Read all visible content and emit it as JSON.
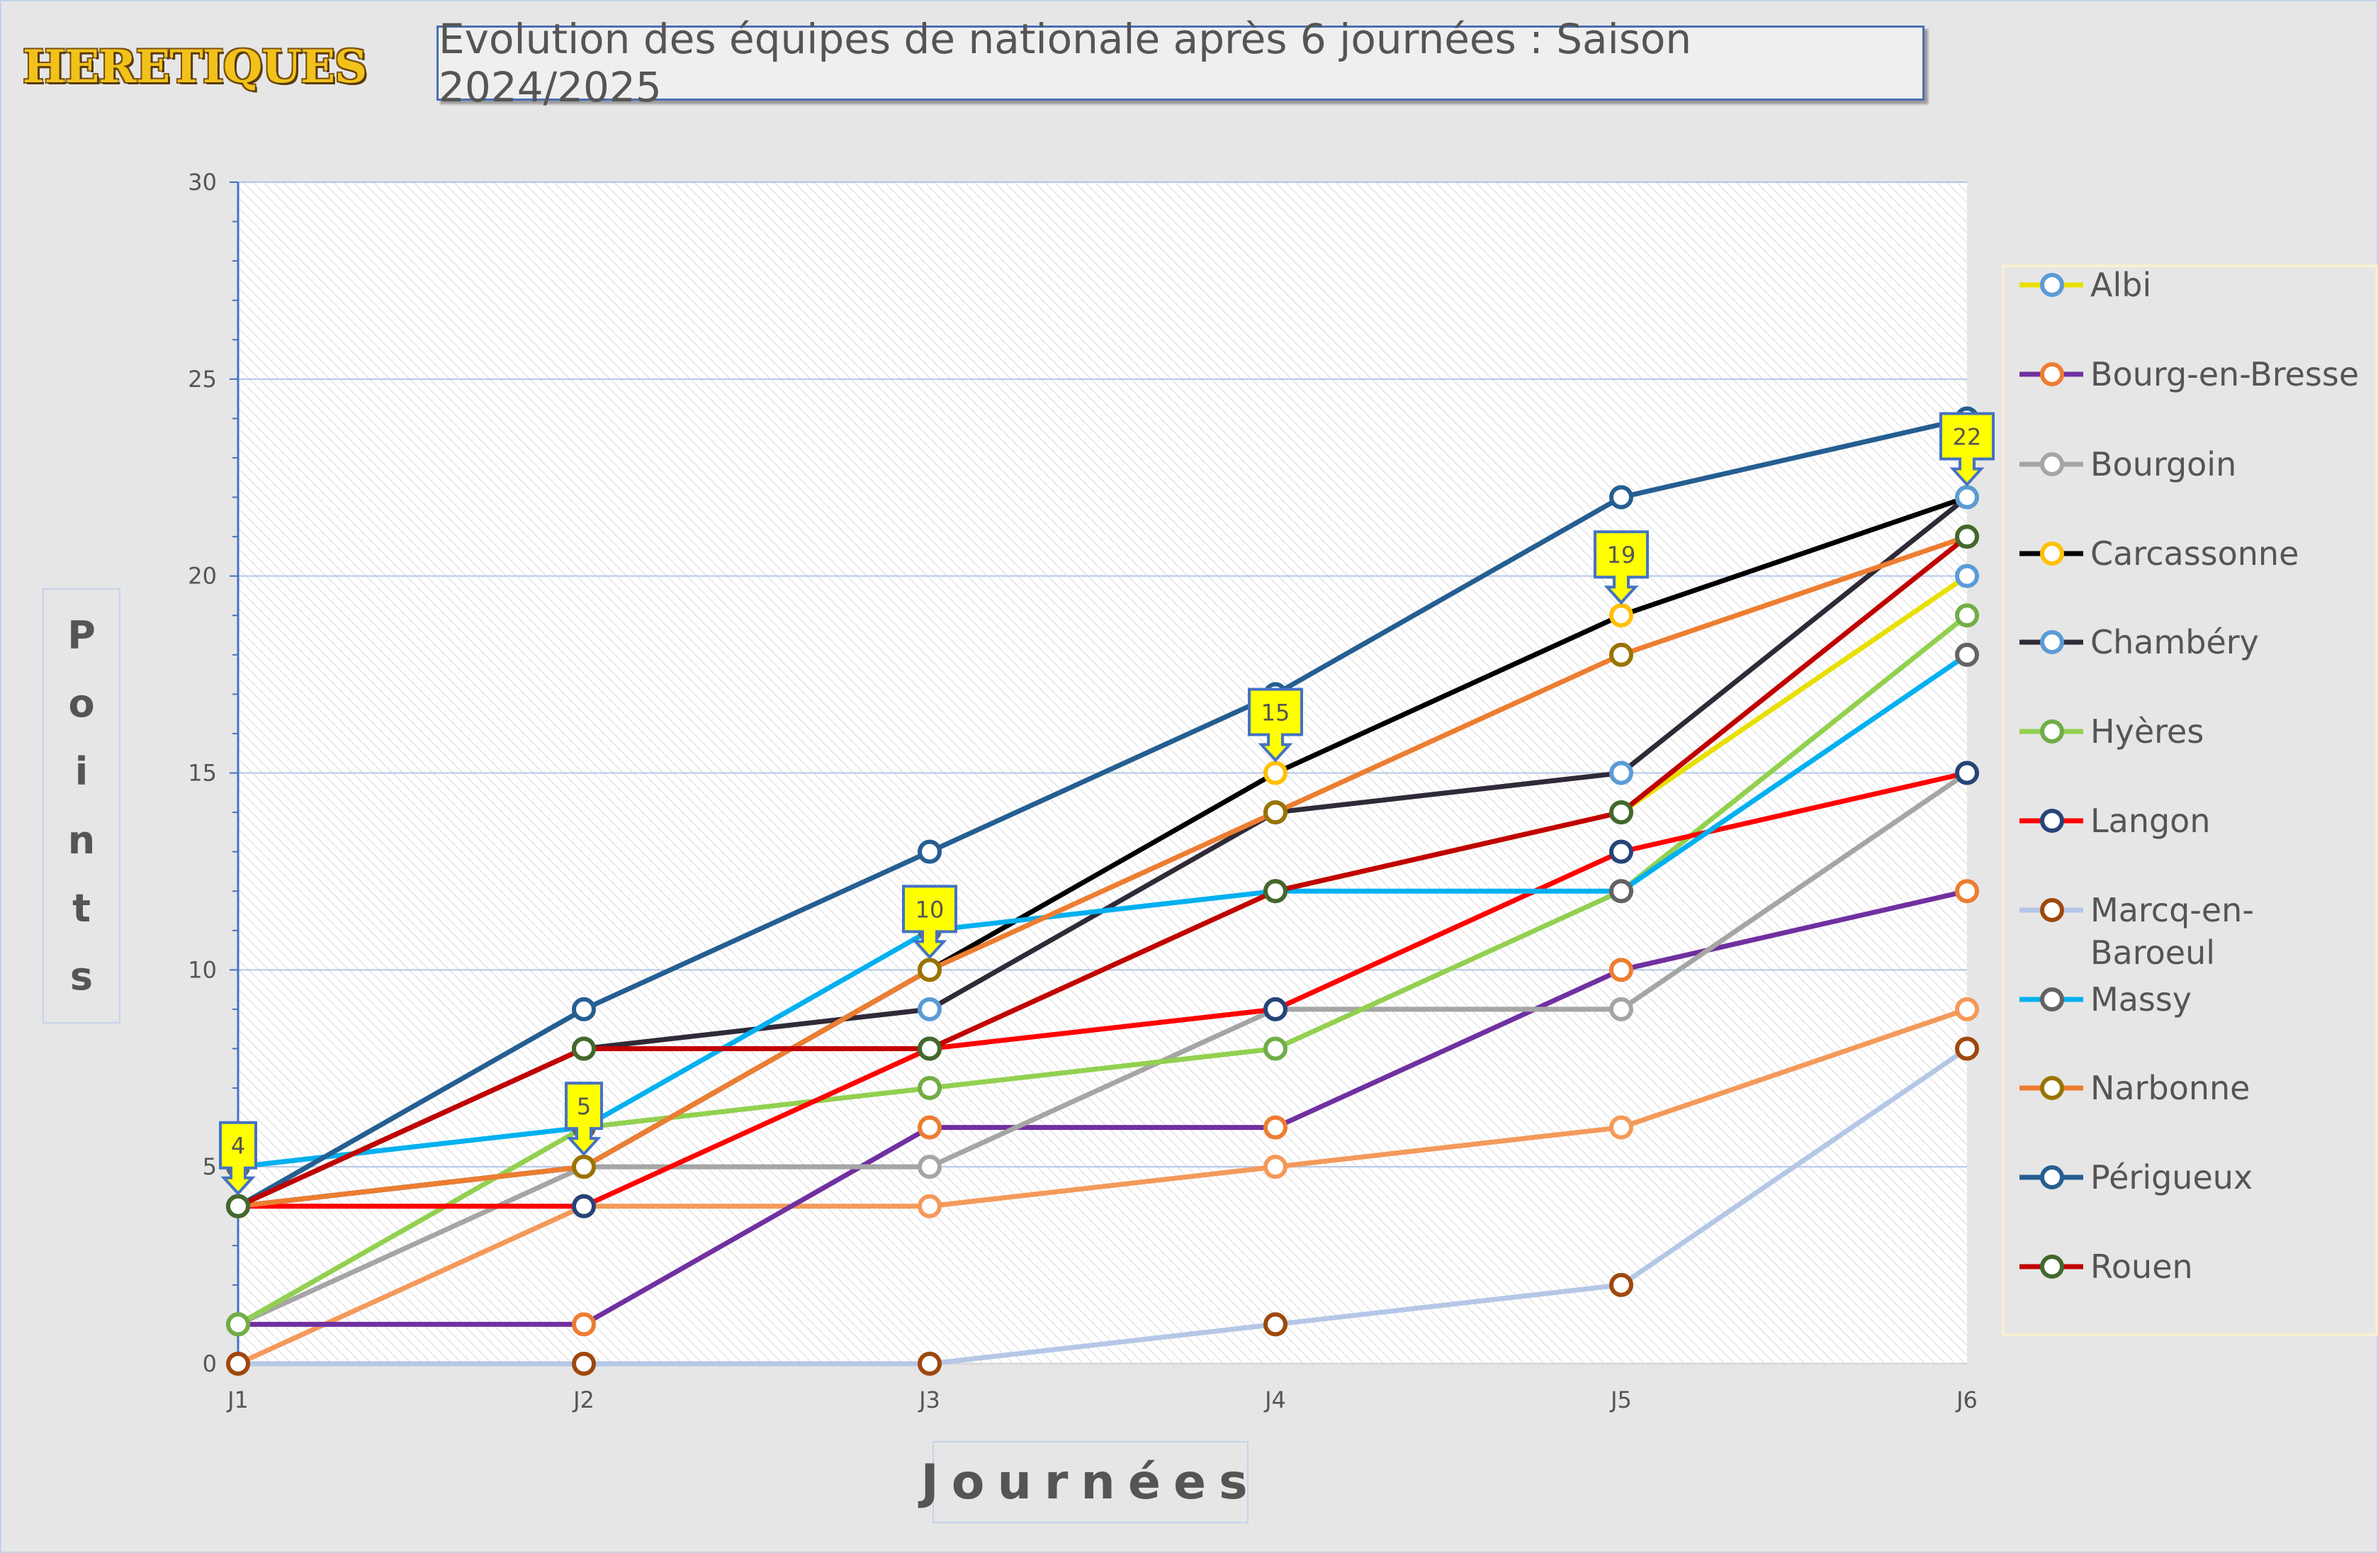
{
  "logo_text": "HERETIQUES",
  "chart_data": {
    "type": "line",
    "title": "Evolution des équipes de nationale après 6 journées : Saison 2024/2025",
    "xlabel": "Journées",
    "ylabel": "Points",
    "categories": [
      "J1",
      "J2",
      "J3",
      "J4",
      "J5",
      "J6"
    ],
    "ylim": [
      0,
      30
    ],
    "yticks": [
      0,
      5,
      10,
      15,
      20,
      25,
      30
    ],
    "grid": true,
    "legend_position": "right",
    "series": [
      {
        "name": "Albi",
        "line": "#e8e000",
        "marker": "#5b9bd5",
        "values": [
          4,
          8,
          8,
          12,
          14,
          20
        ]
      },
      {
        "name": "Bourg-en-Bresse",
        "line": "#7030a0",
        "marker": "#ed7d31",
        "values": [
          1,
          1,
          6,
          6,
          10,
          12
        ]
      },
      {
        "name": "Bourgoin",
        "line": "#a5a5a5",
        "marker": "#a5a5a5",
        "values": [
          1,
          5,
          5,
          9,
          9,
          15
        ]
      },
      {
        "name": "Carcassonne",
        "line": "#000000",
        "marker": "#ffc000",
        "values": [
          4,
          5,
          10,
          15,
          19,
          22
        ]
      },
      {
        "name": "Chambéry",
        "line": "#302a38",
        "marker": "#5b9bd5",
        "values": [
          4,
          8,
          9,
          14,
          15,
          22
        ]
      },
      {
        "name": "Hyères",
        "line": "#92d050",
        "marker": "#70ad47",
        "values": [
          1,
          6,
          7,
          8,
          12,
          19
        ]
      },
      {
        "name": "Langon",
        "line": "#ff0000",
        "marker": "#264478",
        "values": [
          4,
          4,
          8,
          9,
          13,
          15
        ]
      },
      {
        "name": "Marcq-en-Baroeul",
        "line": "#b4c7e7",
        "marker": "#9e480e",
        "values": [
          0,
          0,
          0,
          1,
          2,
          8
        ]
      },
      {
        "name": "Massy",
        "line": "#00b0f0",
        "marker": "#636363",
        "values": [
          5,
          6,
          11,
          12,
          12,
          18
        ]
      },
      {
        "name": "Narbonne",
        "line": "#ed7d31",
        "marker": "#997300",
        "values": [
          4,
          5,
          10,
          14,
          18,
          21
        ]
      },
      {
        "name": "Périgueux",
        "line": "#255e91",
        "marker": "#255e91",
        "values": [
          4,
          9,
          13,
          17,
          22,
          24
        ]
      },
      {
        "name": "Rouen",
        "line": "#c00000",
        "marker": "#43682b",
        "values": [
          4,
          8,
          8,
          12,
          14,
          21
        ]
      }
    ],
    "unlabeled_series": [
      {
        "line": "#f4995a",
        "marker": "#f4995a",
        "values": [
          0,
          4,
          4,
          5,
          6,
          9
        ]
      }
    ],
    "callouts": {
      "series": "Carcassonne",
      "values": [
        "4",
        "5",
        "10",
        "15",
        "19",
        "22"
      ]
    }
  }
}
